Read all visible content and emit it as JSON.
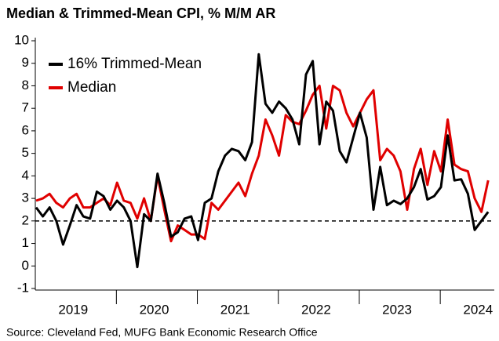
{
  "chart_data": {
    "type": "line",
    "title": "Median & Trimmed-Mean CPI, % M/M AR",
    "source": "Source: Cleveland Fed, MUFG Bank Economic Research Office",
    "categories": [
      null,
      null,
      null,
      null,
      null,
      null,
      "2019",
      null,
      null,
      null,
      null,
      null,
      null,
      null,
      null,
      null,
      null,
      null,
      "2020",
      null,
      null,
      null,
      null,
      null,
      null,
      null,
      null,
      null,
      null,
      null,
      "2021",
      null,
      null,
      null,
      null,
      null,
      null,
      null,
      null,
      null,
      null,
      null,
      "2022",
      null,
      null,
      null,
      null,
      null,
      null,
      null,
      null,
      null,
      null,
      null,
      "2023",
      null,
      null,
      null,
      null,
      null,
      null,
      null,
      null,
      null,
      null,
      null,
      "2024",
      null
    ],
    "series": [
      {
        "name": "16% Trimmed-Mean",
        "color": "#000000",
        "values": [
          2.6,
          2.2,
          2.6,
          2.0,
          0.95,
          1.8,
          2.7,
          2.2,
          2.1,
          3.3,
          3.1,
          2.5,
          2.9,
          2.6,
          2.0,
          -0.05,
          2.3,
          2.0,
          4.1,
          2.8,
          1.3,
          1.5,
          2.1,
          2.2,
          1.15,
          2.8,
          3.0,
          4.2,
          4.9,
          5.2,
          5.1,
          4.7,
          5.5,
          9.4,
          7.2,
          6.8,
          7.3,
          7.0,
          6.5,
          5.4,
          8.5,
          9.1,
          5.4,
          7.3,
          6.9,
          5.1,
          4.6,
          5.7,
          6.8,
          5.7,
          2.5,
          4.4,
          2.7,
          2.9,
          2.75,
          3.0,
          3.5,
          4.3,
          2.95,
          3.1,
          3.5,
          5.8,
          3.8,
          3.85,
          3.2,
          1.6,
          2.0,
          2.4
        ]
      },
      {
        "name": "Median",
        "color": "#e00000",
        "values": [
          2.9,
          3.0,
          3.2,
          2.8,
          2.6,
          3.0,
          3.2,
          2.6,
          2.6,
          2.8,
          3.0,
          2.7,
          3.7,
          2.9,
          2.8,
          2.1,
          3.0,
          2.0,
          4.0,
          2.5,
          1.1,
          1.8,
          1.6,
          1.4,
          1.4,
          1.2,
          2.8,
          2.5,
          2.9,
          3.3,
          3.7,
          3.1,
          4.1,
          4.9,
          6.5,
          5.8,
          4.9,
          6.7,
          6.4,
          6.3,
          6.9,
          7.6,
          8.0,
          6.1,
          8.0,
          7.8,
          6.8,
          6.2,
          6.8,
          7.4,
          7.8,
          4.7,
          5.2,
          4.9,
          4.2,
          2.5,
          4.3,
          5.2,
          3.6,
          5.1,
          4.2,
          6.5,
          4.5,
          4.3,
          4.2,
          3.0,
          2.4,
          3.8
        ]
      }
    ],
    "reference_line": 2,
    "ylim": [
      -1,
      10
    ],
    "yticks": [
      -1,
      0,
      1,
      2,
      3,
      4,
      5,
      6,
      7,
      8,
      9,
      10
    ],
    "legend": "upper left",
    "grid": false
  }
}
